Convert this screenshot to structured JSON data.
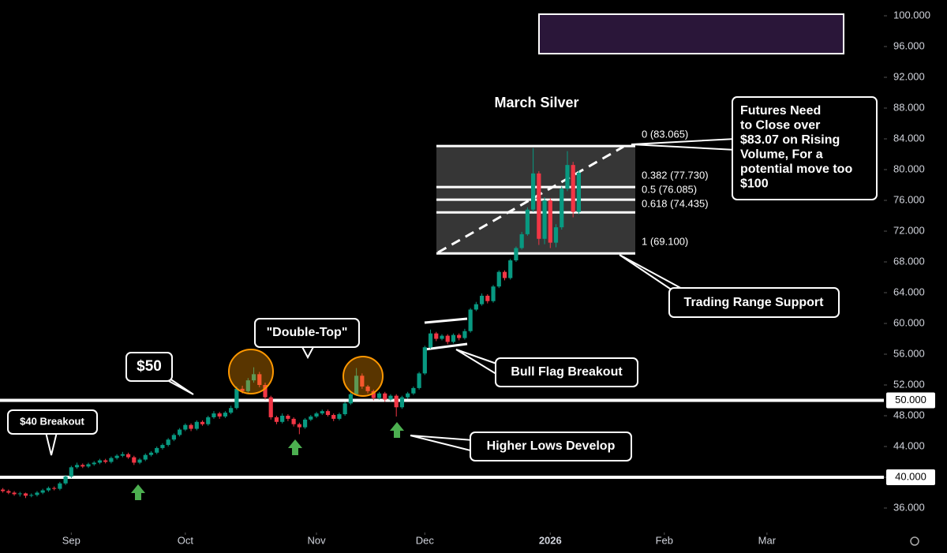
{
  "chart_data": {
    "type": "candlestick",
    "title": "March Silver",
    "up_color": "#089981",
    "down_color": "#f23645",
    "xlim": [
      -0.5,
      154.5
    ],
    "ylim": [
      32.82,
      102.05
    ],
    "xticks": [
      {
        "value": 12,
        "label": "Sep"
      },
      {
        "value": 32,
        "label": "Oct"
      },
      {
        "value": 55,
        "label": "Nov"
      },
      {
        "value": 74,
        "label": "Dec"
      },
      {
        "value": 96,
        "label": "2026"
      },
      {
        "value": 116,
        "label": "Feb"
      },
      {
        "value": 134,
        "label": "Mar"
      }
    ],
    "yticks": [
      {
        "value": 36,
        "label": "36.000"
      },
      {
        "value": 40,
        "label": "40.000"
      },
      {
        "value": 44,
        "label": "44.000"
      },
      {
        "value": 48,
        "label": "48.000"
      },
      {
        "value": 52,
        "label": "52.000"
      },
      {
        "value": 56,
        "label": "56.000"
      },
      {
        "value": 60,
        "label": "60.000"
      },
      {
        "value": 64,
        "label": "64.000"
      },
      {
        "value": 68,
        "label": "68.000"
      },
      {
        "value": 72,
        "label": "72.000"
      },
      {
        "value": 76,
        "label": "76.000"
      },
      {
        "value": 80,
        "label": "80.000"
      },
      {
        "value": 84,
        "label": "84.000"
      },
      {
        "value": 88,
        "label": "88.000"
      },
      {
        "value": 92,
        "label": "92.000"
      },
      {
        "value": 96,
        "label": "96.000"
      },
      {
        "value": 100,
        "label": "100.000"
      }
    ],
    "levels": [
      {
        "value": 50,
        "label": "50.000"
      },
      {
        "value": 40,
        "label": "40.000"
      }
    ],
    "fib_levels": [
      {
        "value": 83.065,
        "label": "0 (83.065)"
      },
      {
        "value": 77.73,
        "label": "0.382 (77.730)"
      },
      {
        "value": 76.085,
        "label": "0.5 (76.085)"
      },
      {
        "value": 74.435,
        "label": "0.618 (74.435)"
      },
      {
        "value": 69.1,
        "label": "1 (69.100)"
      }
    ],
    "annotations": [
      [
        "$40 Breakout"
      ],
      [
        "$50"
      ],
      [
        "\"Double-Top\""
      ],
      [
        "Bull Flag Breakout"
      ],
      [
        "Higher Lows Develop"
      ],
      [
        "Trading Range Support"
      ],
      [
        "Futures Need",
        "to Close over",
        "$83.07 on Rising",
        "Volume, For a",
        "potential move too",
        "$100"
      ]
    ],
    "x": [
      0,
      1,
      2,
      3,
      4,
      5,
      6,
      7,
      8,
      9,
      10,
      11,
      12,
      13,
      14,
      15,
      16,
      17,
      18,
      19,
      20,
      21,
      22,
      23,
      24,
      25,
      26,
      27,
      28,
      29,
      30,
      31,
      32,
      33,
      34,
      35,
      36,
      37,
      38,
      39,
      40,
      41,
      42,
      43,
      44,
      45,
      46,
      47,
      48,
      49,
      50,
      51,
      52,
      53,
      54,
      55,
      56,
      57,
      58,
      59,
      60,
      61,
      62,
      63,
      64,
      65,
      66,
      67,
      68,
      69,
      70,
      71,
      72,
      73,
      74,
      75,
      76,
      77,
      78,
      79,
      80,
      81,
      82,
      83,
      84,
      85,
      86,
      87,
      88,
      89,
      90,
      91,
      92,
      93,
      94,
      95,
      96,
      97,
      98,
      99,
      100,
      101
    ],
    "ohlc": [
      [
        38.4,
        38.6,
        38.0,
        38.2
      ],
      [
        38.2,
        38.4,
        37.8,
        38.0
      ],
      [
        38.0,
        38.2,
        37.6,
        37.8
      ],
      [
        37.8,
        38.1,
        37.5,
        37.9
      ],
      [
        37.9,
        38.0,
        37.3,
        37.6
      ],
      [
        37.6,
        37.9,
        37.4,
        37.7
      ],
      [
        37.7,
        38.2,
        37.5,
        38.0
      ],
      [
        38.0,
        38.5,
        37.8,
        38.3
      ],
      [
        38.3,
        38.8,
        38.1,
        38.6
      ],
      [
        38.6,
        38.8,
        38.3,
        38.5
      ],
      [
        38.5,
        39.4,
        38.3,
        39.2
      ],
      [
        39.2,
        40.3,
        39.0,
        40.1
      ],
      [
        40.1,
        41.5,
        39.9,
        41.3
      ],
      [
        41.3,
        41.9,
        41.1,
        41.6
      ],
      [
        41.6,
        41.8,
        41.2,
        41.4
      ],
      [
        41.4,
        41.9,
        41.2,
        41.7
      ],
      [
        41.7,
        42.1,
        41.5,
        41.9
      ],
      [
        41.9,
        42.4,
        41.7,
        42.2
      ],
      [
        42.2,
        42.4,
        41.8,
        42.0
      ],
      [
        42.0,
        42.7,
        41.8,
        42.5
      ],
      [
        42.5,
        43.0,
        42.3,
        42.8
      ],
      [
        42.8,
        43.3,
        42.6,
        43.0
      ],
      [
        43.0,
        43.2,
        42.4,
        42.6
      ],
      [
        42.6,
        42.8,
        41.6,
        41.9
      ],
      [
        41.9,
        42.5,
        41.7,
        42.3
      ],
      [
        42.3,
        43.1,
        42.1,
        42.9
      ],
      [
        42.9,
        43.4,
        42.7,
        43.2
      ],
      [
        43.2,
        44.0,
        43.0,
        43.8
      ],
      [
        43.8,
        44.4,
        43.6,
        44.2
      ],
      [
        44.2,
        45.1,
        44.0,
        44.9
      ],
      [
        44.9,
        45.7,
        44.7,
        45.5
      ],
      [
        45.5,
        46.4,
        45.3,
        46.2
      ],
      [
        46.2,
        47.0,
        46.0,
        46.8
      ],
      [
        46.8,
        47.0,
        46.0,
        46.3
      ],
      [
        46.3,
        47.4,
        46.1,
        47.2
      ],
      [
        47.2,
        47.4,
        46.7,
        46.9
      ],
      [
        46.9,
        48.0,
        46.7,
        47.8
      ],
      [
        47.8,
        48.6,
        47.6,
        48.3
      ],
      [
        48.3,
        48.5,
        47.6,
        47.9
      ],
      [
        47.9,
        48.6,
        47.7,
        48.4
      ],
      [
        48.4,
        49.3,
        48.2,
        49.0
      ],
      [
        49.0,
        51.8,
        48.8,
        51.5
      ],
      [
        51.5,
        51.9,
        50.9,
        51.2
      ],
      [
        51.2,
        52.9,
        51.0,
        52.6
      ],
      [
        52.6,
        54.3,
        52.3,
        53.4
      ],
      [
        53.4,
        53.7,
        51.7,
        52.0
      ],
      [
        52.0,
        52.3,
        50.1,
        50.4
      ],
      [
        50.4,
        50.6,
        47.5,
        47.8
      ],
      [
        47.8,
        48.0,
        46.9,
        47.2
      ],
      [
        47.2,
        48.3,
        47.0,
        48.0
      ],
      [
        48.0,
        48.2,
        47.3,
        47.6
      ],
      [
        47.6,
        47.8,
        46.6,
        46.9
      ],
      [
        46.9,
        47.1,
        45.6,
        46.5
      ],
      [
        46.5,
        47.7,
        46.3,
        47.5
      ],
      [
        47.5,
        48.1,
        47.3,
        47.9
      ],
      [
        47.9,
        48.5,
        47.7,
        48.3
      ],
      [
        48.3,
        48.8,
        48.1,
        48.6
      ],
      [
        48.6,
        48.8,
        47.9,
        48.1
      ],
      [
        48.1,
        48.3,
        47.3,
        47.6
      ],
      [
        47.6,
        48.4,
        47.4,
        48.2
      ],
      [
        48.2,
        49.8,
        48.0,
        49.6
      ],
      [
        49.6,
        51.0,
        49.4,
        50.8
      ],
      [
        50.8,
        54.2,
        50.6,
        53.2
      ],
      [
        53.2,
        53.5,
        51.5,
        51.8
      ],
      [
        51.8,
        52.0,
        50.9,
        51.2
      ],
      [
        51.2,
        51.4,
        50.0,
        50.3
      ],
      [
        50.3,
        51.1,
        50.1,
        50.9
      ],
      [
        50.9,
        51.1,
        49.8,
        50.1
      ],
      [
        50.1,
        50.8,
        49.9,
        50.6
      ],
      [
        50.6,
        50.8,
        47.9,
        49.1
      ],
      [
        49.1,
        50.6,
        48.9,
        50.4
      ],
      [
        50.4,
        51.1,
        50.2,
        50.9
      ],
      [
        50.9,
        51.8,
        50.7,
        51.6
      ],
      [
        51.6,
        53.7,
        51.4,
        53.5
      ],
      [
        53.5,
        57.1,
        53.3,
        56.9
      ],
      [
        56.9,
        59.2,
        56.7,
        58.7
      ],
      [
        58.7,
        58.9,
        57.7,
        58.0
      ],
      [
        58.0,
        58.6,
        57.8,
        58.4
      ],
      [
        58.4,
        58.6,
        57.3,
        57.6
      ],
      [
        57.6,
        58.7,
        57.4,
        58.5
      ],
      [
        58.5,
        58.7,
        57.8,
        58.1
      ],
      [
        58.1,
        59.3,
        57.9,
        59.0
      ],
      [
        59.0,
        62.0,
        58.8,
        61.8
      ],
      [
        61.8,
        62.8,
        61.6,
        62.5
      ],
      [
        62.5,
        63.9,
        62.3,
        63.6
      ],
      [
        63.6,
        63.8,
        62.6,
        62.9
      ],
      [
        62.9,
        65.0,
        62.7,
        64.8
      ],
      [
        64.8,
        66.9,
        64.6,
        66.7
      ],
      [
        66.7,
        66.9,
        65.6,
        65.9
      ],
      [
        65.9,
        68.4,
        65.7,
        68.2
      ],
      [
        68.2,
        70.0,
        68.0,
        69.8
      ],
      [
        69.8,
        71.9,
        69.6,
        71.6
      ],
      [
        71.6,
        75.1,
        71.4,
        74.8
      ],
      [
        74.8,
        82.8,
        74.5,
        79.5
      ],
      [
        79.5,
        79.8,
        70.2,
        71.0
      ],
      [
        71.0,
        76.4,
        70.3,
        76.0
      ],
      [
        76.0,
        76.3,
        69.8,
        70.5
      ],
      [
        70.5,
        72.9,
        69.9,
        72.5
      ],
      [
        72.5,
        77.8,
        72.2,
        77.5
      ],
      [
        77.5,
        82.4,
        77.2,
        80.6
      ],
      [
        80.6,
        81.0,
        73.8,
        74.5
      ],
      [
        74.5,
        79.9,
        74.2,
        79.6
      ]
    ]
  }
}
